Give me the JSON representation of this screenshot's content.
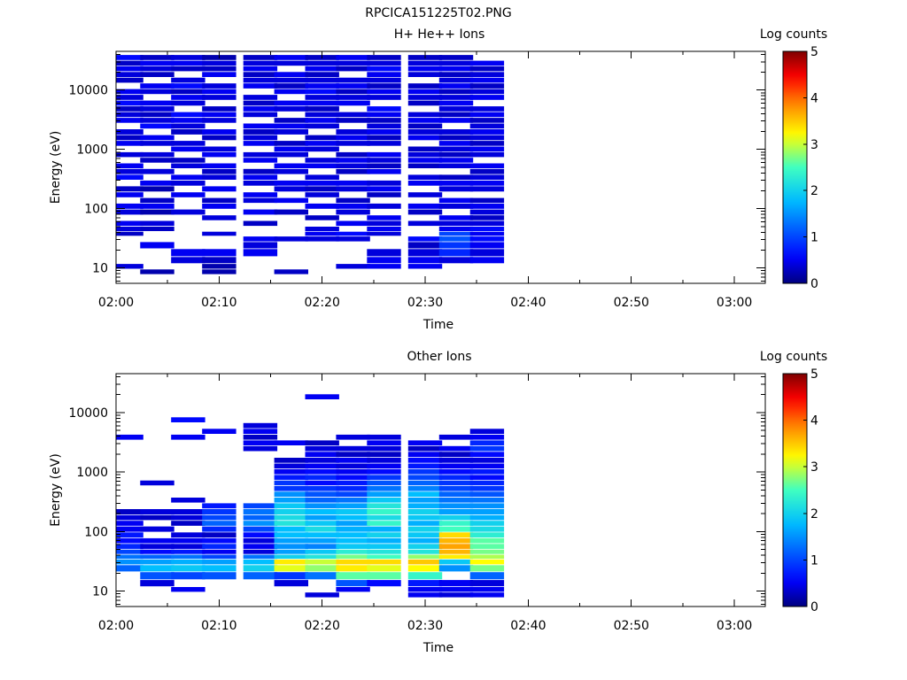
{
  "page_title": "RPCICA151225T02.PNG",
  "colors": {
    "colormap": [
      "#00007f",
      "#0000ff",
      "#00bfff",
      "#40ffc0",
      "#ffff00",
      "#ff8000",
      "#ff0000",
      "#7f0000"
    ]
  },
  "chart_data": [
    {
      "type": "heatmap",
      "title": "H+ He++ Ions",
      "xlabel": "Time",
      "ylabel": "Energy (eV)",
      "x_scale": "time",
      "y_scale": "log",
      "xlim": [
        "02:00",
        "03:03"
      ],
      "ylim": [
        5.5,
        45000
      ],
      "x_ticks": [
        "02:00",
        "02:10",
        "02:20",
        "02:30",
        "02:40",
        "02:50",
        "03:00"
      ],
      "y_ticks": [
        "10",
        "100",
        "1000",
        "10000"
      ],
      "colorbar": {
        "label": "Log counts",
        "range": [
          0,
          5
        ],
        "ticks": [
          "0",
          "1",
          "2",
          "3",
          "4",
          "5"
        ]
      },
      "time_bins": [
        "02:01",
        "02:04",
        "02:07",
        "02:10",
        "02:14",
        "02:17",
        "02:20",
        "02:23",
        "02:26",
        "02:30",
        "02:33",
        "02:36"
      ],
      "energy_bins": [
        8.5,
        10.5,
        13,
        18,
        24,
        31,
        37,
        45,
        55,
        70,
        85,
        110,
        135,
        170,
        210,
        270,
        330,
        420,
        520,
        650,
        800,
        1000,
        1250,
        1550,
        1950,
        2450,
        3050,
        3800,
        4750,
        5950,
        7450,
        9300,
        11600,
        14500,
        18100,
        22600,
        28000,
        35000
      ],
      "values": [
        [
          0,
          0.4,
          0,
          0,
          0,
          0,
          0.3,
          0.4,
          0.5,
          0,
          0.4,
          0.5,
          0,
          0.5,
          0.3,
          0,
          0.6,
          0.4,
          0.5,
          0,
          0.4,
          0,
          0.5,
          0.3,
          0.4,
          0,
          0.5,
          0.4,
          0.3,
          0.6,
          0.4,
          0.5,
          0,
          0.3,
          0.4,
          0.5,
          0.3,
          0.6
        ],
        [
          0.2,
          0,
          0,
          0,
          0.5,
          0,
          0,
          0.3,
          0.4,
          0,
          0.2,
          0.5,
          0.3,
          0,
          0.2,
          0.5,
          0,
          0.4,
          0,
          0.3,
          0.4,
          0,
          0.4,
          0.5,
          0,
          0.6,
          0.4,
          0.3,
          0.4,
          0.5,
          0,
          0.4,
          0.5,
          0,
          0.3,
          0.4,
          0.5,
          0.3
        ],
        [
          0,
          0,
          0.4,
          0.5,
          0,
          0,
          0,
          0,
          0,
          0,
          0.4,
          0,
          0,
          0.5,
          0,
          0.4,
          0.5,
          0,
          0.4,
          0.3,
          0,
          0.5,
          0.4,
          0,
          0.3,
          0.4,
          0.5,
          0.6,
          0,
          0.4,
          0.5,
          0.3,
          0.6,
          0.4,
          0,
          0.3,
          0.5,
          0.4
        ],
        [
          0.2,
          0.2,
          0.3,
          0.5,
          0,
          0,
          0.4,
          0,
          0,
          0.4,
          0,
          0.5,
          0.3,
          0,
          0.5,
          0,
          0.4,
          0.3,
          0.5,
          0,
          0.5,
          0.4,
          0,
          0.3,
          0.5,
          0,
          0.4,
          0.5,
          0.3,
          0,
          0.4,
          0.5,
          0.4,
          0,
          0.5,
          0.3,
          0.4,
          0.2
        ],
        [
          0,
          0,
          0,
          0.5,
          0.4,
          0.5,
          0,
          0,
          0.3,
          0,
          0.5,
          0,
          0.4,
          0.5,
          0,
          0.4,
          0.5,
          0.3,
          0,
          0.5,
          0.4,
          0,
          0.5,
          0.4,
          0.3,
          0.5,
          0,
          0.4,
          0.5,
          0.3,
          0.4,
          0,
          0.5,
          0.4,
          0.3,
          0.5,
          0.4,
          0.3
        ],
        [
          0.3,
          0,
          0,
          0,
          0,
          0.4,
          0,
          0,
          0,
          0,
          0.3,
          0,
          0.5,
          0,
          0.4,
          0.5,
          0,
          0.4,
          0.5,
          0,
          0.4,
          0.5,
          0.3,
          0,
          0.4,
          0.5,
          0.3,
          0,
          0.4,
          0.5,
          0,
          0.5,
          0.3,
          0.4,
          0.5,
          0,
          0.4,
          0.5
        ],
        [
          0,
          0,
          0,
          0,
          0,
          0.4,
          0.5,
          0.4,
          0,
          0.3,
          0,
          0.5,
          0,
          0.4,
          0.3,
          0.5,
          0.4,
          0,
          0.5,
          0.4,
          0,
          0.4,
          0.5,
          0.3,
          0,
          0.4,
          0.5,
          0.4,
          0.3,
          0.5,
          0.4,
          0.6,
          0.5,
          0.4,
          0.3,
          0.5,
          0.4,
          0.3
        ],
        [
          0,
          0.4,
          0,
          0,
          0,
          0.4,
          0.6,
          0,
          0.5,
          0,
          0.4,
          0.5,
          0.3,
          0,
          0.4,
          0.5,
          0,
          0.3,
          0.4,
          0.5,
          0.3,
          0,
          0.4,
          0.5,
          0.4,
          0,
          0.3,
          0.4,
          0,
          0.5,
          0.4,
          0.3,
          0.5,
          0.4,
          0,
          0.3,
          0.4,
          0.5
        ],
        [
          0,
          0.5,
          0.5,
          0.4,
          0,
          0,
          0.4,
          0.5,
          0.4,
          0.5,
          0,
          0.4,
          0,
          0.3,
          0.5,
          0.4,
          0,
          0.5,
          0.3,
          0.4,
          0.5,
          0,
          0.4,
          0.3,
          0.5,
          0.4,
          0.3,
          0.5,
          0.6,
          0,
          0.4,
          0.5,
          0.3,
          0.4,
          0.5,
          0.6,
          0.4,
          0.3
        ],
        [
          0,
          0.5,
          0.5,
          0.4,
          0.3,
          0.6,
          0,
          0,
          0.4,
          0,
          0.3,
          0.5,
          0,
          0.4,
          0,
          0.5,
          0.4,
          0,
          0.3,
          0.5,
          0.4,
          0.3,
          0,
          0.5,
          0.4,
          0.3,
          0.5,
          0.4,
          0,
          0.3,
          0.4,
          0.5,
          0.3,
          0,
          0.4,
          0.5,
          0.4,
          0.3
        ],
        [
          0,
          0,
          0.4,
          0.8,
          0.9,
          1.1,
          1.0,
          0.5,
          0.4,
          0.5,
          0,
          0.4,
          0.5,
          0,
          0.4,
          0.5,
          0.3,
          0,
          0.4,
          0.5,
          0.3,
          0.4,
          0.5,
          0.3,
          0.4,
          0,
          0.5,
          0.3,
          0.4,
          0.5,
          0.4,
          0.3,
          0.5,
          0.4,
          0.3,
          0.5,
          0.4,
          0.3
        ],
        [
          0,
          0,
          0.5,
          0.4,
          0.5,
          0.6,
          0.5,
          0.6,
          0.4,
          0.3,
          0.4,
          0.5,
          0.3,
          0,
          0.4,
          0.5,
          0.4,
          0.3,
          0.5,
          0,
          0.4,
          0.5,
          0.3,
          0.4,
          0.5,
          0.4,
          0.3,
          0.5,
          0.4,
          0,
          0.5,
          0.4,
          0.3,
          0.5,
          0.4,
          0.3,
          0.5,
          0
        ]
      ]
    },
    {
      "type": "heatmap",
      "title": "Other Ions",
      "xlabel": "Time",
      "ylabel": "Energy (eV)",
      "x_scale": "time",
      "y_scale": "log",
      "xlim": [
        "02:00",
        "03:03"
      ],
      "ylim": [
        5.5,
        45000
      ],
      "x_ticks": [
        "02:00",
        "02:10",
        "02:20",
        "02:30",
        "02:40",
        "02:50",
        "03:00"
      ],
      "y_ticks": [
        "10",
        "100",
        "1000",
        "10000"
      ],
      "colorbar": {
        "label": "Log counts",
        "range": [
          0,
          5
        ],
        "ticks": [
          "0",
          "1",
          "2",
          "3",
          "4",
          "5"
        ]
      },
      "time_bins": [
        "02:01",
        "02:04",
        "02:07",
        "02:10",
        "02:14",
        "02:17",
        "02:20",
        "02:23",
        "02:26",
        "02:30",
        "02:33",
        "02:36"
      ],
      "energy_bins": [
        8.5,
        10.5,
        13,
        18,
        24,
        31,
        37,
        45,
        55,
        70,
        85,
        110,
        135,
        170,
        210,
        270,
        330,
        420,
        520,
        650,
        800,
        1000,
        1250,
        1550,
        1950,
        2450,
        3050,
        3800,
        4750,
        5950,
        7450,
        9300,
        11600,
        14500,
        18100,
        22600,
        28000,
        35000
      ],
      "values": [
        [
          0,
          0,
          0,
          0,
          1.2,
          1.5,
          1.3,
          1.0,
          0.8,
          0.6,
          0.7,
          0.5,
          0.5,
          0.4,
          0.3,
          0,
          0,
          0,
          0,
          0,
          0,
          0,
          0,
          0,
          0,
          0,
          0,
          0.5,
          0,
          0,
          0,
          0,
          0,
          0,
          0,
          0,
          0,
          0
        ],
        [
          0,
          0,
          0.4,
          1.1,
          1.8,
          1.6,
          1.2,
          0.6,
          0.4,
          0.5,
          0,
          0.4,
          0,
          0.3,
          0.4,
          0,
          0,
          0,
          0,
          0.4,
          0,
          0,
          0,
          0,
          0,
          0,
          0,
          0,
          0,
          0,
          0,
          0,
          0,
          0,
          0,
          0,
          0,
          0
        ],
        [
          0,
          0.5,
          0,
          1.0,
          1.9,
          1.7,
          1.3,
          0.7,
          0.4,
          0.5,
          0.4,
          0,
          0.3,
          0.4,
          0.4,
          0,
          0.4,
          0,
          0,
          0,
          0,
          0,
          0,
          0,
          0,
          0,
          0,
          0.5,
          0,
          0,
          0.6,
          0,
          0,
          0,
          0,
          0,
          0,
          0
        ],
        [
          0,
          0,
          0,
          1.1,
          1.8,
          1.6,
          1.0,
          0.5,
          0.8,
          0.6,
          0.3,
          0.8,
          1.2,
          1.0,
          0.9,
          0.7,
          0,
          0,
          0,
          0,
          0,
          0,
          0,
          0,
          0,
          0,
          0,
          0,
          0.5,
          0,
          0,
          0,
          0,
          0,
          0,
          0,
          0,
          0
        ],
        [
          0,
          0,
          0,
          1.2,
          2.0,
          1.8,
          1.3,
          0.4,
          0.5,
          0.4,
          0.6,
          1.0,
          1.5,
          1.2,
          1.3,
          1.0,
          0,
          0,
          0,
          0,
          0,
          0,
          0,
          0,
          0,
          0.4,
          0.5,
          0.3,
          0.5,
          0.4,
          0,
          0,
          0,
          0,
          0,
          0,
          0,
          0
        ],
        [
          0,
          0,
          0.4,
          0.9,
          3.1,
          3.3,
          2.0,
          1.6,
          1.5,
          1.6,
          1.8,
          1.8,
          2.2,
          2.1,
          2.0,
          1.9,
          1.6,
          1.5,
          0.9,
          0.9,
          0.7,
          0.5,
          0.4,
          0.3,
          0,
          0,
          0.5,
          0,
          0,
          0,
          0,
          0,
          0,
          0,
          0,
          0,
          0,
          0
        ],
        [
          0.4,
          0,
          0,
          1.3,
          2.8,
          3.0,
          2.2,
          1.9,
          1.4,
          1.6,
          1.8,
          2.1,
          1.9,
          1.6,
          1.8,
          1.5,
          1.2,
          1.1,
          0.9,
          0.6,
          0.8,
          0.6,
          0.5,
          0.4,
          0.5,
          0.4,
          0.3,
          0,
          0,
          0,
          0,
          0,
          0,
          0,
          0.5,
          0,
          0,
          0
        ],
        [
          0,
          0.5,
          1.1,
          2.6,
          3.3,
          3.4,
          2.7,
          2.3,
          1.9,
          1.8,
          1.8,
          1.7,
          1.6,
          1.8,
          1.9,
          1.6,
          1.3,
          1.0,
          0.8,
          0.7,
          0.6,
          0.5,
          0.4,
          0.5,
          0.3,
          0.4,
          0,
          0.4,
          0,
          0,
          0,
          0,
          0,
          0,
          0,
          0,
          0,
          0
        ],
        [
          0,
          0,
          0.6,
          2.6,
          3.1,
          3.4,
          2.5,
          2.2,
          1.9,
          1.7,
          2.0,
          1.7,
          2.4,
          2.1,
          2.4,
          2.2,
          1.9,
          1.6,
          1.3,
          1.1,
          0.9,
          0.6,
          0.5,
          0.4,
          0.3,
          0.4,
          0.5,
          0.4,
          0,
          0,
          0,
          0,
          0,
          0,
          0,
          0,
          0,
          0
        ],
        [
          0.5,
          0.5,
          0.7,
          2.4,
          3.2,
          3.5,
          2.8,
          2.2,
          2.0,
          1.7,
          1.9,
          2.0,
          1.7,
          1.9,
          2.0,
          1.7,
          1.6,
          1.8,
          1.4,
          1.2,
          1.0,
          0.9,
          0.7,
          0.6,
          0.5,
          0.3,
          0.5,
          0,
          0,
          0,
          0,
          0,
          0,
          0,
          0,
          0,
          0,
          0
        ],
        [
          0.4,
          0.5,
          0.5,
          0,
          1.5,
          1.9,
          3.3,
          3.6,
          3.7,
          3.6,
          3.4,
          2.5,
          2.4,
          2.0,
          1.6,
          1.5,
          1.3,
          1.2,
          1.0,
          0.9,
          0.8,
          0.6,
          0.5,
          0.4,
          0.3,
          0.5,
          0,
          0.4,
          0,
          0,
          0,
          0,
          0,
          0,
          0,
          0,
          0,
          0
        ],
        [
          0.5,
          0.5,
          0.4,
          1.2,
          2.7,
          3.2,
          2.9,
          2.7,
          2.6,
          2.6,
          2.3,
          2.1,
          2.0,
          1.7,
          1.6,
          1.5,
          1.3,
          1.1,
          0.9,
          0.8,
          0.6,
          0.7,
          0.5,
          0.4,
          0.6,
          0.9,
          0.8,
          0.5,
          0.4,
          0,
          0,
          0,
          0,
          0,
          0,
          0,
          0,
          0
        ]
      ]
    }
  ]
}
